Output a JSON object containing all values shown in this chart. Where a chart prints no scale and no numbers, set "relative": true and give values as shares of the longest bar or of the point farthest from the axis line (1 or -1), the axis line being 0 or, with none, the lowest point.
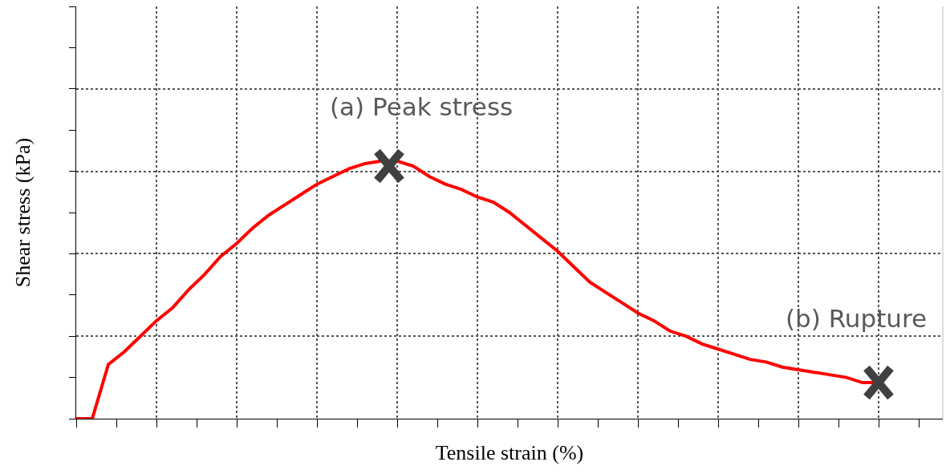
{
  "chart_data": {
    "type": "line",
    "relative": true,
    "xlabel": "Tensile strain (%)",
    "ylabel": "Shear stress (kPa)",
    "categories": [
      null,
      null,
      null,
      null,
      null,
      null,
      null,
      null,
      null,
      null,
      null,
      null,
      null,
      null,
      null,
      null,
      null,
      null,
      null,
      null,
      null,
      null,
      null,
      null,
      null,
      null,
      null,
      null,
      null,
      null,
      null,
      null,
      null,
      null,
      null,
      null,
      null,
      null,
      null,
      null,
      null,
      null,
      null,
      null,
      null,
      null,
      null,
      null,
      null,
      null,
      null,
      null,
      null,
      null,
      null
    ],
    "series": [
      {
        "color": "#ff0000",
        "values": [
          0,
          0,
          0.21,
          0.26,
          0.32,
          0.38,
          0.43,
          0.5,
          0.56,
          0.63,
          0.68,
          0.74,
          0.79,
          0.83,
          0.87,
          0.91,
          0.94,
          0.97,
          0.99,
          1,
          1,
          0.98,
          0.94,
          0.91,
          0.89,
          0.86,
          0.84,
          0.8,
          0.75,
          0.7,
          0.65,
          0.59,
          0.53,
          0.49,
          0.45,
          0.41,
          0.38,
          0.34,
          0.32,
          0.29,
          0.27,
          0.25,
          0.23,
          0.22,
          0.2,
          0.19,
          0.18,
          0.17,
          0.16,
          0.14,
          0.14,
          null,
          null,
          null,
          null
        ]
      }
    ],
    "annotations": [
      "(a) Peak stress",
      "(b) Rupture"
    ],
    "grid": true,
    "marker": "none",
    "line_style": "solid"
  }
}
